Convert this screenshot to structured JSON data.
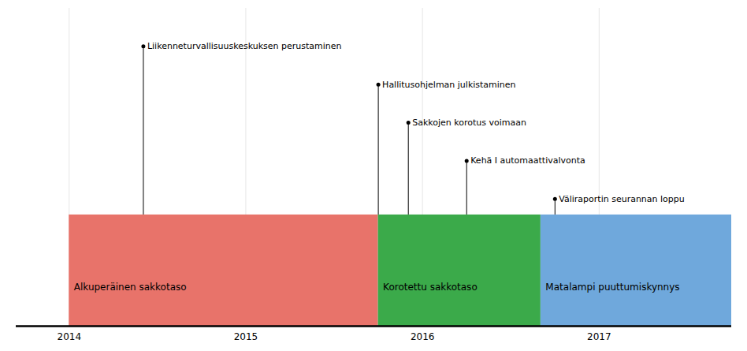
{
  "chart_data": {
    "type": "timeline",
    "phases": [
      {
        "name": "Alkuperäinen sakkotaso",
        "start": 2014.0,
        "end": 2015.75,
        "color": "#E8736A"
      },
      {
        "name": "Korotettu sakkotaso",
        "start": 2015.75,
        "end": 2016.67,
        "color": "#3BAA4A"
      },
      {
        "name": "Matalampi puuttumiskynnys",
        "start": 2016.67,
        "end": 2017.75,
        "color": "#6FA8DC"
      }
    ],
    "events": [
      {
        "label": "Liikenneturvallisuuskeskuksen perustaminen",
        "x": 2014.42
      },
      {
        "label": "Hallitusohjelman julkistaminen",
        "x": 2015.75
      },
      {
        "label": "Sakkojen korotus voimaan",
        "x": 2015.92
      },
      {
        "label": "Kehä I automaattivalvonta",
        "x": 2016.25
      },
      {
        "label": "Väliraportin seurannan loppu",
        "x": 2016.75
      }
    ],
    "xlim": [
      2013.7,
      2017.75
    ],
    "xticks": [
      2014,
      2015,
      2016,
      2017
    ],
    "grid": true,
    "tick_labels": "x"
  }
}
